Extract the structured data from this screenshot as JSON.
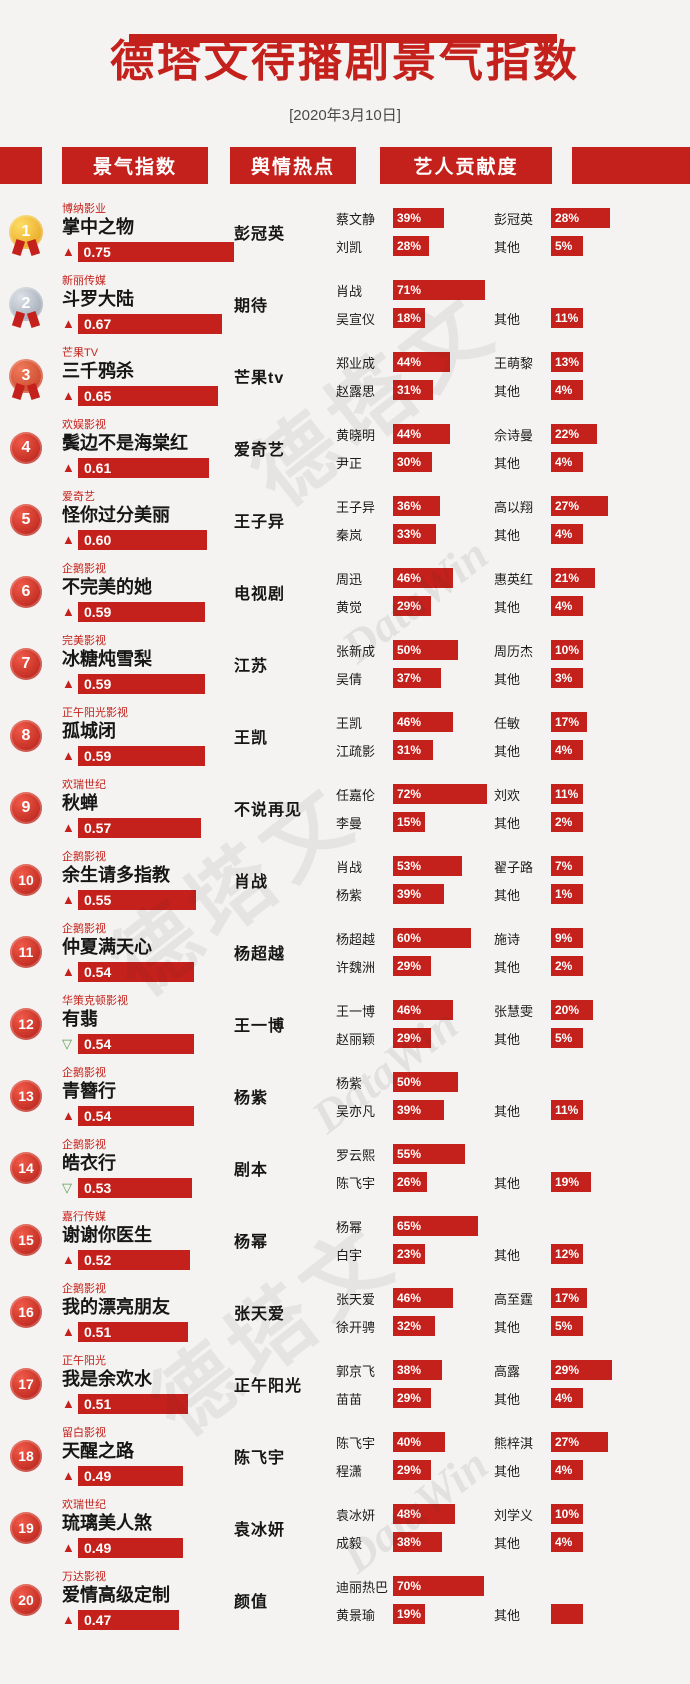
{
  "colors": {
    "accent": "#c5211c",
    "trend_down": "#5c9e53",
    "gold": "#e8a20f",
    "silver": "#9aa2af",
    "bronze": "#c03a1e"
  },
  "watermarks": {
    "cn": "德塔文",
    "en": "DataWin"
  },
  "chart_data": {
    "type": "table",
    "title": "德塔文待播剧景气指数",
    "date": "[2020年3月10日]",
    "columns": [
      "景气指数",
      "舆情热点",
      "艺人贡献度"
    ],
    "index_range": [
      0,
      1
    ],
    "rows": [
      {
        "rank": "1",
        "medal": "gold",
        "company": "博纳影业",
        "title": "掌中之物",
        "trend": "up",
        "index": "0.75",
        "hotspot": "彭冠英",
        "left": [
          {
            "name": "蔡文静",
            "pct": 39
          },
          {
            "name": "刘凯",
            "pct": 28
          }
        ],
        "right": [
          {
            "name": "彭冠英",
            "pct": 28
          },
          {
            "name": "其他",
            "pct": 5
          }
        ]
      },
      {
        "rank": "2",
        "medal": "silver",
        "company": "新丽传媒",
        "title": "斗罗大陆",
        "trend": "up",
        "index": "0.67",
        "hotspot": "期待",
        "left": [
          {
            "name": "肖战",
            "pct": 71
          },
          {
            "name": "吴宣仪",
            "pct": 18
          }
        ],
        "right": [
          null,
          {
            "name": "其他",
            "pct": 11
          }
        ]
      },
      {
        "rank": "3",
        "medal": "bronze",
        "company": "芒果TV",
        "title": "三千鸦杀",
        "trend": "up",
        "index": "0.65",
        "hotspot": "芒果tv",
        "left": [
          {
            "name": "郑业成",
            "pct": 44
          },
          {
            "name": "赵露思",
            "pct": 31
          }
        ],
        "right": [
          {
            "name": "王萌黎",
            "pct": 13
          },
          {
            "name": "其他",
            "pct": 4
          }
        ]
      },
      {
        "rank": "4",
        "company": "欢娱影视",
        "title": "鬓边不是海棠红",
        "trend": "up",
        "index": "0.61",
        "hotspot": "爱奇艺",
        "left": [
          {
            "name": "黄晓明",
            "pct": 44
          },
          {
            "name": "尹正",
            "pct": 30
          }
        ],
        "right": [
          {
            "name": "佘诗曼",
            "pct": 22
          },
          {
            "name": "其他",
            "pct": 4
          }
        ]
      },
      {
        "rank": "5",
        "company": "爱奇艺",
        "title": "怪你过分美丽",
        "trend": "up",
        "index": "0.60",
        "hotspot": "王子异",
        "left": [
          {
            "name": "王子异",
            "pct": 36
          },
          {
            "name": "秦岚",
            "pct": 33
          }
        ],
        "right": [
          {
            "name": "高以翔",
            "pct": 27
          },
          {
            "name": "其他",
            "pct": 4
          }
        ]
      },
      {
        "rank": "6",
        "company": "企鹅影视",
        "title": "不完美的她",
        "trend": "up",
        "index": "0.59",
        "hotspot": "电视剧",
        "left": [
          {
            "name": "周迅",
            "pct": 46
          },
          {
            "name": "黄觉",
            "pct": 29
          }
        ],
        "right": [
          {
            "name": "惠英红",
            "pct": 21
          },
          {
            "name": "其他",
            "pct": 4
          }
        ]
      },
      {
        "rank": "7",
        "company": "完美影视",
        "title": "冰糖炖雪梨",
        "trend": "up",
        "index": "0.59",
        "hotspot": "江苏",
        "left": [
          {
            "name": "张新成",
            "pct": 50
          },
          {
            "name": "吴倩",
            "pct": 37
          }
        ],
        "right": [
          {
            "name": "周历杰",
            "pct": 10
          },
          {
            "name": "其他",
            "pct": 3
          }
        ]
      },
      {
        "rank": "8",
        "company": "正午阳光影视",
        "title": "孤城闭",
        "trend": "up",
        "index": "0.59",
        "hotspot": "王凯",
        "left": [
          {
            "name": "王凯",
            "pct": 46
          },
          {
            "name": "江疏影",
            "pct": 31
          }
        ],
        "right": [
          {
            "name": "任敏",
            "pct": 17
          },
          {
            "name": "其他",
            "pct": 4
          }
        ]
      },
      {
        "rank": "9",
        "company": "欢瑞世纪",
        "title": "秋蝉",
        "trend": "up",
        "index": "0.57",
        "hotspot": "不说再见",
        "left": [
          {
            "name": "任嘉伦",
            "pct": 72
          },
          {
            "name": "李曼",
            "pct": 15
          }
        ],
        "right": [
          {
            "name": "刘欢",
            "pct": 11
          },
          {
            "name": "其他",
            "pct": 2
          }
        ]
      },
      {
        "rank": "10",
        "company": "企鹅影视",
        "title": "余生请多指教",
        "trend": "up",
        "index": "0.55",
        "hotspot": "肖战",
        "left": [
          {
            "name": "肖战",
            "pct": 53
          },
          {
            "name": "杨紫",
            "pct": 39
          }
        ],
        "right": [
          {
            "name": "翟子路",
            "pct": 7
          },
          {
            "name": "其他",
            "pct": 1
          }
        ]
      },
      {
        "rank": "11",
        "company": "企鹅影视",
        "title": "仲夏满天心",
        "trend": "up",
        "index": "0.54",
        "hotspot": "杨超越",
        "left": [
          {
            "name": "杨超越",
            "pct": 60
          },
          {
            "name": "许魏洲",
            "pct": 29
          }
        ],
        "right": [
          {
            "name": "施诗",
            "pct": 9
          },
          {
            "name": "其他",
            "pct": 2
          }
        ]
      },
      {
        "rank": "12",
        "company": "华策克顿影视",
        "title": "有翡",
        "trend": "down",
        "index": "0.54",
        "hotspot": "王一博",
        "left": [
          {
            "name": "王一博",
            "pct": 46
          },
          {
            "name": "赵丽颖",
            "pct": 29
          }
        ],
        "right": [
          {
            "name": "张慧雯",
            "pct": 20
          },
          {
            "name": "其他",
            "pct": 5
          }
        ]
      },
      {
        "rank": "13",
        "company": "企鹅影视",
        "title": "青簪行",
        "trend": "up",
        "index": "0.54",
        "hotspot": "杨紫",
        "left": [
          {
            "name": "杨紫",
            "pct": 50
          },
          {
            "name": "吴亦凡",
            "pct": 39
          }
        ],
        "right": [
          null,
          {
            "name": "其他",
            "pct": 11
          }
        ]
      },
      {
        "rank": "14",
        "company": "企鹅影视",
        "title": "皓衣行",
        "trend": "down",
        "index": "0.53",
        "hotspot": "剧本",
        "left": [
          {
            "name": "罗云熙",
            "pct": 55
          },
          {
            "name": "陈飞宇",
            "pct": 26
          }
        ],
        "right": [
          null,
          {
            "name": "其他",
            "pct": 19
          }
        ]
      },
      {
        "rank": "15",
        "company": "嘉行传媒",
        "title": "谢谢你医生",
        "trend": "up",
        "index": "0.52",
        "hotspot": "杨幂",
        "left": [
          {
            "name": "杨幂",
            "pct": 65
          },
          {
            "name": "白宇",
            "pct": 23
          }
        ],
        "right": [
          null,
          {
            "name": "其他",
            "pct": 12
          }
        ]
      },
      {
        "rank": "16",
        "company": "企鹅影视",
        "title": "我的漂亮朋友",
        "trend": "up",
        "index": "0.51",
        "hotspot": "张天爱",
        "left": [
          {
            "name": "张天爱",
            "pct": 46
          },
          {
            "name": "徐开骋",
            "pct": 32
          }
        ],
        "right": [
          {
            "name": "高至霆",
            "pct": 17
          },
          {
            "name": "其他",
            "pct": 5
          }
        ]
      },
      {
        "rank": "17",
        "company": "正午阳光",
        "title": "我是余欢水",
        "trend": "up",
        "index": "0.51",
        "hotspot": "正午阳光",
        "left": [
          {
            "name": "郭京飞",
            "pct": 38
          },
          {
            "name": "苗苗",
            "pct": 29
          }
        ],
        "right": [
          {
            "name": "高露",
            "pct": 29
          },
          {
            "name": "其他",
            "pct": 4
          }
        ]
      },
      {
        "rank": "18",
        "company": "留白影视",
        "title": "天醒之路",
        "trend": "up",
        "index": "0.49",
        "hotspot": "陈飞宇",
        "left": [
          {
            "name": "陈飞宇",
            "pct": 40
          },
          {
            "name": "程潇",
            "pct": 29
          }
        ],
        "right": [
          {
            "name": "熊梓淇",
            "pct": 27
          },
          {
            "name": "其他",
            "pct": 4
          }
        ]
      },
      {
        "rank": "19",
        "company": "欢瑞世纪",
        "title": "琉璃美人煞",
        "trend": "up",
        "index": "0.49",
        "hotspot": "袁冰妍",
        "left": [
          {
            "name": "袁冰妍",
            "pct": 48
          },
          {
            "name": "成毅",
            "pct": 38
          }
        ],
        "right": [
          {
            "name": "刘学义",
            "pct": 10
          },
          {
            "name": "其他",
            "pct": 4
          }
        ]
      },
      {
        "rank": "20",
        "company": "万达影视",
        "title": "爱情高级定制",
        "trend": "up",
        "index": "0.47",
        "hotspot": "颜值",
        "left": [
          {
            "name": "迪丽热巴",
            "pct": 70
          },
          {
            "name": "黄景瑜",
            "pct": 19
          }
        ],
        "right": [
          null,
          {
            "name": "其他",
            "label": ""
          }
        ]
      }
    ]
  }
}
